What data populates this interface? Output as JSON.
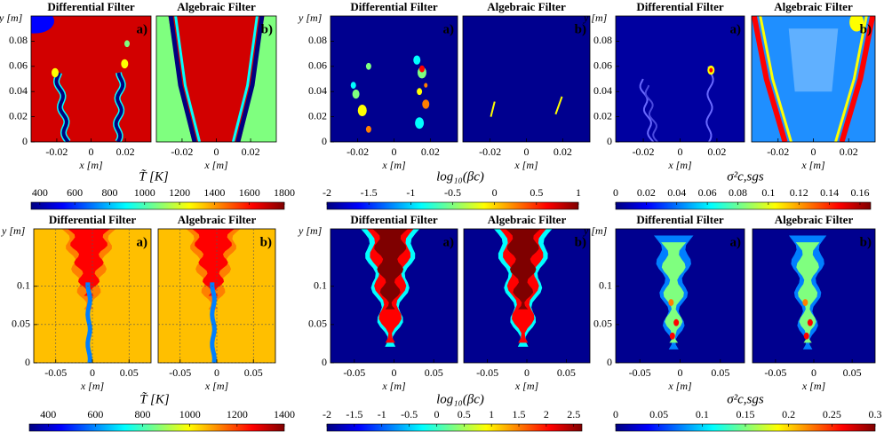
{
  "colormap": [
    "#00007f",
    "#0000ff",
    "#007fff",
    "#00ffff",
    "#7fff7f",
    "#ffff00",
    "#ff7f00",
    "#ff0000",
    "#7f0000"
  ],
  "figures": [
    {
      "panels": [
        {
          "title": "Differential Filter",
          "letter": "a)"
        },
        {
          "title": "Algebraic Filter",
          "letter": "b)"
        }
      ],
      "xlabel": "x [m]",
      "ylabel": "y [m]",
      "xlim": [
        -0.035,
        0.035
      ],
      "xticks": [
        -0.02,
        0,
        0.02
      ],
      "ylim": [
        0,
        0.1
      ],
      "yticks": [
        0,
        0.02,
        0.04,
        0.06,
        0.08
      ],
      "grid": false,
      "colorbar": {
        "label": "T̃ [K]",
        "lim": [
          350,
          1800
        ],
        "ticks": [
          400,
          600,
          800,
          1000,
          1200,
          1400,
          1600,
          1800
        ]
      }
    },
    {
      "panels": [
        {
          "title": "Differential Filter",
          "letter": "a)"
        },
        {
          "title": "Algebraic Filter",
          "letter": "b)"
        }
      ],
      "xlabel": "x [m]",
      "ylabel": "y [m]",
      "xlim": [
        -0.035,
        0.035
      ],
      "xticks": [
        -0.02,
        0,
        0.02
      ],
      "ylim": [
        0,
        0.1
      ],
      "yticks": [
        0,
        0.02,
        0.04,
        0.06,
        0.08
      ],
      "grid": false,
      "colorbar": {
        "label": "log₁₀(βc)",
        "lim": [
          -2,
          1
        ],
        "ticks": [
          -2,
          -1.5,
          -1,
          -0.5,
          0,
          0.5,
          1
        ]
      }
    },
    {
      "panels": [
        {
          "title": "Differential Filter",
          "letter": "a)"
        },
        {
          "title": "Algebraic Filter",
          "letter": "b)"
        }
      ],
      "xlabel": "x [m]",
      "ylabel": "y [m]",
      "xlim": [
        -0.035,
        0.035
      ],
      "xticks": [
        -0.02,
        0,
        0.02
      ],
      "ylim": [
        0,
        0.1
      ],
      "yticks": [
        0,
        0.02,
        0.04,
        0.06,
        0.08
      ],
      "grid": false,
      "colorbar": {
        "label": "σ²c,sgs",
        "lim": [
          0,
          0.167
        ],
        "ticks": [
          0,
          0.02,
          0.04,
          0.06,
          0.08,
          0.1,
          0.12,
          0.14,
          0.16
        ]
      }
    },
    {
      "panels": [
        {
          "title": "Differential Filter",
          "letter": "a)"
        },
        {
          "title": "Algebraic Filter",
          "letter": "b)"
        }
      ],
      "xlabel": "x [m]",
      "ylabel": "y [m]",
      "xlim": [
        -0.08,
        0.08
      ],
      "xticks": [
        -0.05,
        0,
        0.05
      ],
      "ylim": [
        0,
        0.175
      ],
      "yticks": [
        0,
        0.05,
        0.1
      ],
      "grid": true,
      "colorbar": {
        "label": "T̃ [K]",
        "lim": [
          320,
          1400
        ],
        "ticks": [
          400,
          600,
          800,
          1000,
          1200,
          1400
        ]
      }
    },
    {
      "panels": [
        {
          "title": "Differential Filter",
          "letter": "a)"
        },
        {
          "title": "Algebraic Filter",
          "letter": "b)"
        }
      ],
      "xlabel": "x [m]",
      "ylabel": "y [m]",
      "xlim": [
        -0.08,
        0.08
      ],
      "xticks": [
        -0.05,
        0,
        0.05
      ],
      "ylim": [
        0,
        0.175
      ],
      "yticks": [
        0,
        0.05,
        0.1
      ],
      "grid": false,
      "colorbar": {
        "label": "log₁₀(βc)",
        "lim": [
          -2,
          2.65
        ],
        "ticks": [
          -2,
          -1.5,
          -1,
          -0.5,
          0,
          0.5,
          1,
          1.5,
          2,
          2.5
        ]
      }
    },
    {
      "panels": [
        {
          "title": "Differential Filter",
          "letter": "a)"
        },
        {
          "title": "Algebraic Filter",
          "letter": "b)"
        }
      ],
      "xlabel": "x [m]",
      "ylabel": "y [m]",
      "xlim": [
        -0.08,
        0.08
      ],
      "xticks": [
        -0.05,
        0,
        0.05
      ],
      "ylim": [
        0,
        0.175
      ],
      "yticks": [
        0,
        0.05,
        0.1
      ],
      "grid": false,
      "colorbar": {
        "label": "σ²c,sgs",
        "lim": [
          0,
          0.3
        ],
        "ticks": [
          0,
          0.05,
          0.1,
          0.15,
          0.2,
          0.25,
          0.3
        ]
      }
    }
  ]
}
